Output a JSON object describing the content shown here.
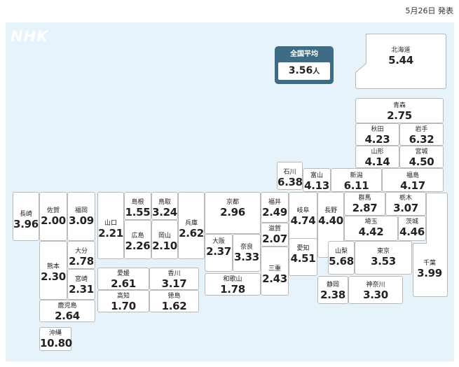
{
  "header": {
    "date_label": "5月26日 発表"
  },
  "logo": {
    "text": "NHK"
  },
  "average": {
    "title": "全国平均",
    "value": "3.56",
    "unit": "人"
  },
  "colors": {
    "map_background": "#e6f3fb",
    "tile_border": "#b9b9b9",
    "average_box": "#3c6d84"
  },
  "prefectures": [
    {
      "name": "北海道",
      "value": "5.44"
    },
    {
      "name": "青森",
      "value": "2.75"
    },
    {
      "name": "秋田",
      "value": "4.23"
    },
    {
      "name": "岩手",
      "value": "6.32"
    },
    {
      "name": "山形",
      "value": "4.14"
    },
    {
      "name": "宮城",
      "value": "4.50"
    },
    {
      "name": "石川",
      "value": "6.38"
    },
    {
      "name": "富山",
      "value": "4.13"
    },
    {
      "name": "新潟",
      "value": "6.11"
    },
    {
      "name": "福島",
      "value": "4.17"
    },
    {
      "name": "長崎",
      "value": "3.96"
    },
    {
      "name": "佐賀",
      "value": "2.00"
    },
    {
      "name": "福岡",
      "value": "3.09"
    },
    {
      "name": "山口",
      "value": "2.21"
    },
    {
      "name": "島根",
      "value": "1.55"
    },
    {
      "name": "鳥取",
      "value": "3.24"
    },
    {
      "name": "兵庫",
      "value": "2.62"
    },
    {
      "name": "京都",
      "value": "2.96"
    },
    {
      "name": "福井",
      "value": "2.49"
    },
    {
      "name": "岐阜",
      "value": "4.74"
    },
    {
      "name": "長野",
      "value": "4.40"
    },
    {
      "name": "群馬",
      "value": "2.87"
    },
    {
      "name": "栃木",
      "value": "3.07"
    },
    {
      "name": "埼玉",
      "value": "4.42"
    },
    {
      "name": "茨城",
      "value": "4.46"
    },
    {
      "name": "広島",
      "value": "2.26"
    },
    {
      "name": "岡山",
      "value": "2.10"
    },
    {
      "name": "大阪",
      "value": "2.37"
    },
    {
      "name": "奈良",
      "value": "3.33"
    },
    {
      "name": "滋賀",
      "value": "2.07"
    },
    {
      "name": "熊本",
      "value": "2.30"
    },
    {
      "name": "大分",
      "value": "2.78"
    },
    {
      "name": "宮崎",
      "value": "2.31"
    },
    {
      "name": "愛媛",
      "value": "2.61"
    },
    {
      "name": "香川",
      "value": "3.17"
    },
    {
      "name": "三重",
      "value": "2.43"
    },
    {
      "name": "愛知",
      "value": "4.51"
    },
    {
      "name": "山梨",
      "value": "5.68"
    },
    {
      "name": "東京",
      "value": "3.53"
    },
    {
      "name": "千葉",
      "value": "3.99"
    },
    {
      "name": "和歌山",
      "value": "1.78"
    },
    {
      "name": "高知",
      "value": "1.70"
    },
    {
      "name": "徳島",
      "value": "1.62"
    },
    {
      "name": "静岡",
      "value": "2.38"
    },
    {
      "name": "神奈川",
      "value": "3.30"
    },
    {
      "name": "鹿児島",
      "value": "2.64"
    },
    {
      "name": "沖縄",
      "value": "10.80"
    }
  ]
}
